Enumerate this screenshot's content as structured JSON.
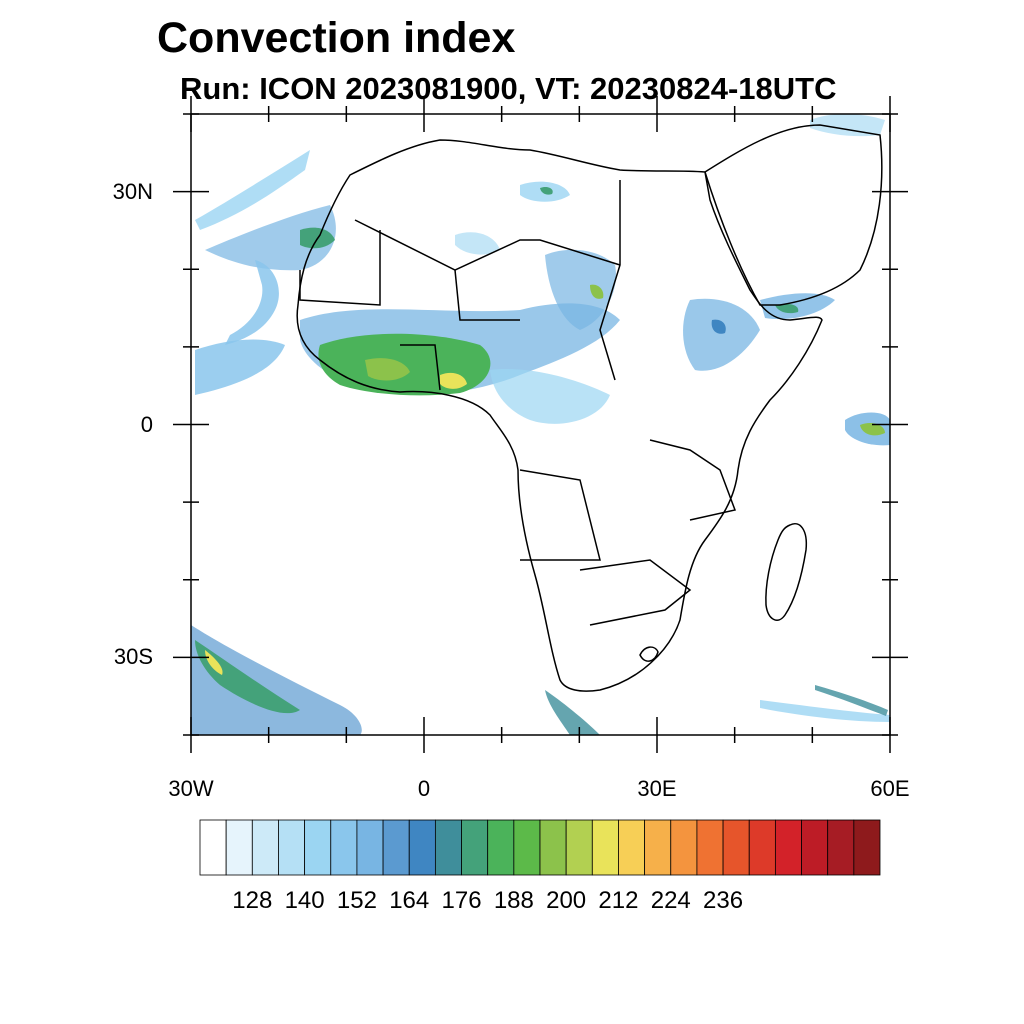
{
  "title": "Convection index",
  "subtitle": "Run: ICON 2023081900,  VT: 20230824-18UTC",
  "map": {
    "region": "Africa",
    "projection": "equirectangular",
    "lon_range": [
      -30,
      60
    ],
    "lat_range": [
      -40,
      40
    ],
    "lat_ticks": [
      {
        "label": "30N",
        "lat": 30
      },
      {
        "label": "0",
        "lat": 0
      },
      {
        "label": "30S",
        "lat": -30
      }
    ],
    "lon_ticks": [
      {
        "label": "30W",
        "lon": -30
      },
      {
        "label": "0",
        "lon": 0
      },
      {
        "label": "30E",
        "lon": 30
      },
      {
        "label": "60E",
        "lon": 60
      }
    ]
  },
  "colorbar": {
    "colors": [
      "#ffffff",
      "#e6f4fc",
      "#cdeaf8",
      "#b5e0f5",
      "#9bd5f2",
      "#8ac6ec",
      "#78b5e3",
      "#5b9ad0",
      "#3f86c2",
      "#3f8e9b",
      "#44a27a",
      "#4bb35a",
      "#5cba49",
      "#8cc24b",
      "#b2d051",
      "#e9e35a",
      "#f7cf56",
      "#f6b04a",
      "#f4943e",
      "#ef7232",
      "#e6552b",
      "#dd3a29",
      "#d32229",
      "#bd1c26",
      "#a61c24",
      "#8e1a1c"
    ],
    "labels": [
      "128",
      "140",
      "152",
      "164",
      "176",
      "188",
      "200",
      "212",
      "224",
      "236"
    ],
    "start": 122,
    "step": 6
  }
}
